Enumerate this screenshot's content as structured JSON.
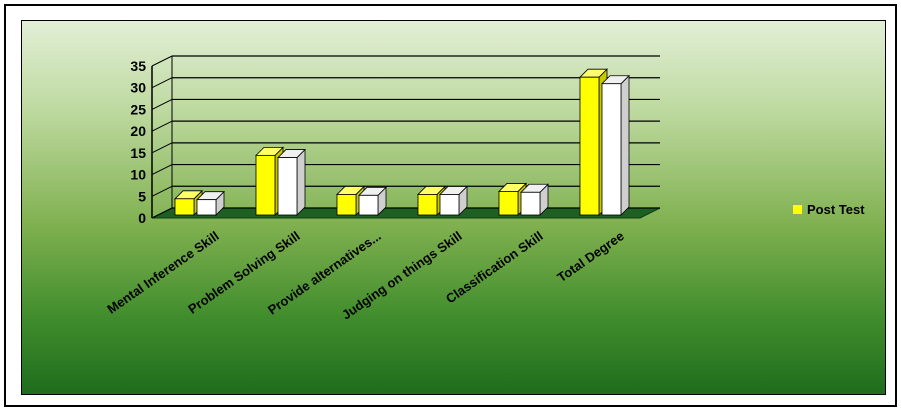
{
  "chart_data": {
    "type": "bar",
    "categories": [
      "Mental Inference Skill",
      "Problem Solving Skill",
      "Provide alternatives...",
      "Judging on things Skill",
      "Classification Skill",
      "Total Degree"
    ],
    "series": [
      {
        "name": "",
        "values": [
          3.5,
          13.5,
          4.5,
          4.5,
          5.2,
          31.5
        ],
        "color": "#ffff00"
      },
      {
        "name": "Post Test",
        "values": [
          3.3,
          13.0,
          4.3,
          4.5,
          5.0,
          30.0
        ],
        "color": "#ffffff"
      }
    ],
    "yticks": [
      0,
      5,
      10,
      15,
      20,
      25,
      30,
      35
    ],
    "ylim": [
      0,
      35
    ],
    "grid": true,
    "legend": {
      "position": "right",
      "swatch_color": "#ffff00"
    },
    "colors": {
      "floor": "#1e5f22",
      "background_top": "#e2efd6",
      "background_bottom": "#1f6d1d"
    }
  }
}
